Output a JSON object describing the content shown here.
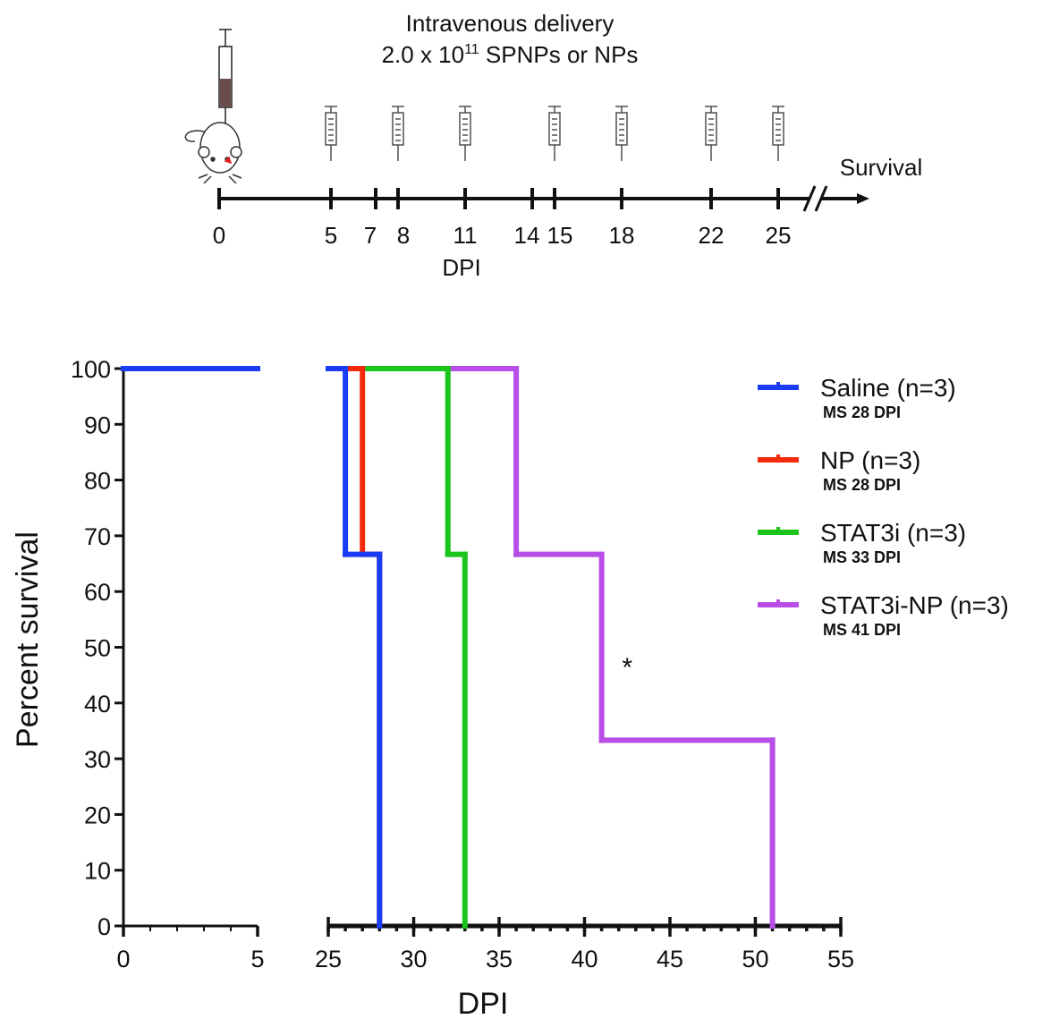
{
  "chart_data": [
    {
      "type": "timeline",
      "title_lines": [
        "Intravenous delivery",
        {
          "text": "2.0 x 10",
          "sup": "11",
          "rest": " SPNPs or NPs"
        }
      ],
      "xlim": [
        0,
        25
      ],
      "xticks": [
        0,
        5,
        7,
        8,
        11,
        14,
        15,
        18,
        22,
        25
      ],
      "injections": [
        5,
        8,
        11,
        15,
        18,
        22,
        25
      ],
      "xlabel": "DPI",
      "end_label": "Survival"
    },
    {
      "type": "step",
      "ylabel": "Percent survival",
      "xlabel": "DPI",
      "ylim": [
        0,
        100
      ],
      "yticks": [
        0,
        10,
        20,
        30,
        40,
        50,
        60,
        70,
        80,
        90,
        100
      ],
      "x_segments": [
        {
          "xlim": [
            0,
            5
          ],
          "xticks": [
            0,
            5
          ]
        },
        {
          "xlim": [
            25,
            55
          ],
          "xticks": [
            25,
            30,
            35,
            40,
            45,
            50,
            55
          ]
        }
      ],
      "minor_tick_step": 1,
      "series": [
        {
          "name": "Saline (n=3)",
          "median_label": "MS 28 DPI",
          "color": "#1a3cf5",
          "x": [
            0,
            26,
            28
          ],
          "values": [
            100,
            66.67,
            0
          ]
        },
        {
          "name": "NP (n=3)",
          "median_label": "MS 28 DPI",
          "color": "#f52a0c",
          "x": [
            0,
            27,
            28
          ],
          "values": [
            100,
            66.67,
            0
          ]
        },
        {
          "name": "STAT3i (n=3)",
          "median_label": "MS 33 DPI",
          "color": "#1bc51b",
          "x": [
            0,
            32,
            33
          ],
          "values": [
            100,
            66.67,
            0
          ]
        },
        {
          "name": "STAT3i-NP (n=3)",
          "median_label": "MS 41 DPI",
          "color": "#b84ee8",
          "x": [
            0,
            36,
            41,
            51
          ],
          "values": [
            100,
            66.67,
            33.33,
            0
          ]
        }
      ],
      "annotations": [
        {
          "text": "*",
          "x": 42.5,
          "y": 47
        }
      ]
    }
  ]
}
